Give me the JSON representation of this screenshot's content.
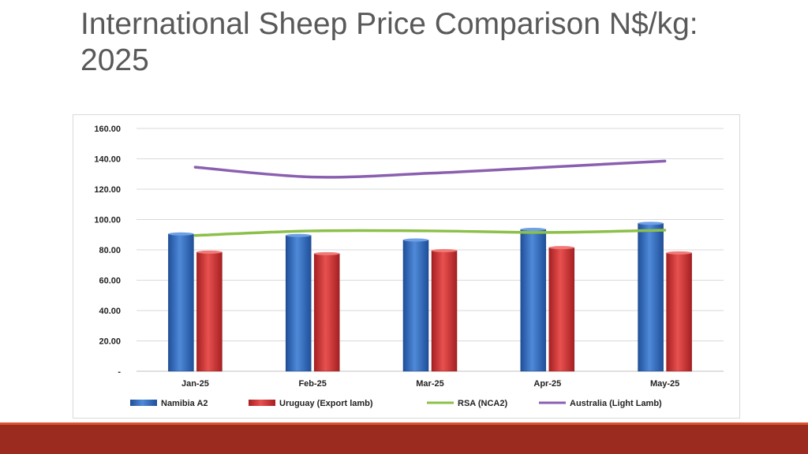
{
  "slide": {
    "title_line1": "International Sheep Price Comparison N$/kg:",
    "title_line2": "2025"
  },
  "colors": {
    "namibia": "#3a72c4",
    "uruguay": "#d8383a",
    "rsa": "#8cc04a",
    "australia": "#8a5fb0",
    "grid": "#d9d9d9",
    "band": "#9b2a1f",
    "band_top": "#d9542f"
  },
  "chart_data": {
    "type": "bar",
    "title": "",
    "xlabel": "",
    "ylabel": "",
    "ylim": [
      0,
      160
    ],
    "yticks": [
      0,
      20,
      40,
      60,
      80,
      100,
      120,
      140,
      160
    ],
    "ytick_labels": [
      "-",
      "20.00",
      "40.00",
      "60.00",
      "80.00",
      "100.00",
      "120.00",
      "140.00",
      "160.00"
    ],
    "categories": [
      "Jan-25",
      "Feb-25",
      "Mar-25",
      "Apr-25",
      "May-25"
    ],
    "grid": true,
    "legend_position": "bottom",
    "series": [
      {
        "name": "Namibia A2",
        "kind": "bar",
        "values": [
          90.5,
          89.5,
          86.5,
          93.5,
          97.5
        ]
      },
      {
        "name": "Uruguay (Export lamb)",
        "kind": "bar",
        "values": [
          78.5,
          77.5,
          79.5,
          81.5,
          78.0
        ]
      },
      {
        "name": "RSA (NCA2)",
        "kind": "line",
        "values": [
          89.5,
          92.5,
          92.5,
          91.5,
          93.0
        ]
      },
      {
        "name": "Australia (Light Lamb)",
        "kind": "line",
        "values": [
          134.5,
          128.0,
          130.5,
          134.5,
          138.5
        ]
      }
    ]
  }
}
